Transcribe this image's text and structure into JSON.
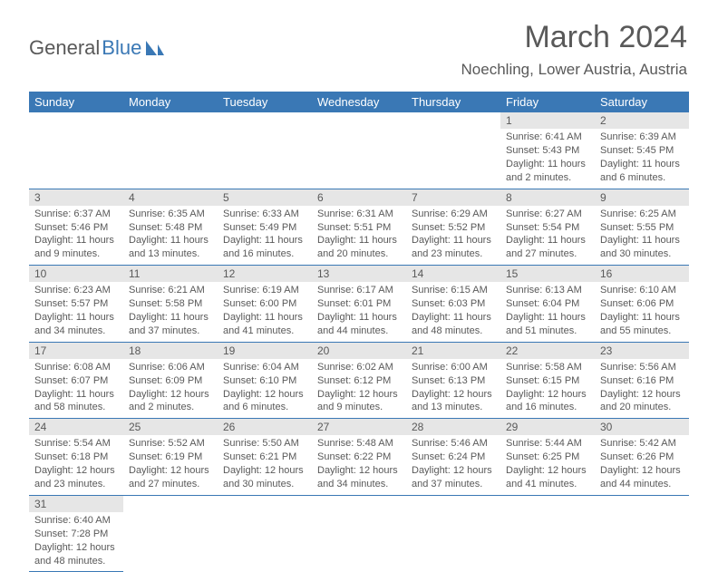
{
  "logo": {
    "part1": "General",
    "part2": "Blue"
  },
  "title": "March 2024",
  "location": "Noechling, Lower Austria, Austria",
  "colors": {
    "header_bg": "#3a78b5",
    "header_text": "#ffffff",
    "daynum_bg": "#e6e6e6",
    "body_text": "#595959",
    "rule": "#3a78b5"
  },
  "weekdays": [
    "Sunday",
    "Monday",
    "Tuesday",
    "Wednesday",
    "Thursday",
    "Friday",
    "Saturday"
  ],
  "weeks": [
    [
      null,
      null,
      null,
      null,
      null,
      {
        "n": "1",
        "sunrise": "6:41 AM",
        "sunset": "5:43 PM",
        "day": "11 hours and 2 minutes."
      },
      {
        "n": "2",
        "sunrise": "6:39 AM",
        "sunset": "5:45 PM",
        "day": "11 hours and 6 minutes."
      }
    ],
    [
      {
        "n": "3",
        "sunrise": "6:37 AM",
        "sunset": "5:46 PM",
        "day": "11 hours and 9 minutes."
      },
      {
        "n": "4",
        "sunrise": "6:35 AM",
        "sunset": "5:48 PM",
        "day": "11 hours and 13 minutes."
      },
      {
        "n": "5",
        "sunrise": "6:33 AM",
        "sunset": "5:49 PM",
        "day": "11 hours and 16 minutes."
      },
      {
        "n": "6",
        "sunrise": "6:31 AM",
        "sunset": "5:51 PM",
        "day": "11 hours and 20 minutes."
      },
      {
        "n": "7",
        "sunrise": "6:29 AM",
        "sunset": "5:52 PM",
        "day": "11 hours and 23 minutes."
      },
      {
        "n": "8",
        "sunrise": "6:27 AM",
        "sunset": "5:54 PM",
        "day": "11 hours and 27 minutes."
      },
      {
        "n": "9",
        "sunrise": "6:25 AM",
        "sunset": "5:55 PM",
        "day": "11 hours and 30 minutes."
      }
    ],
    [
      {
        "n": "10",
        "sunrise": "6:23 AM",
        "sunset": "5:57 PM",
        "day": "11 hours and 34 minutes."
      },
      {
        "n": "11",
        "sunrise": "6:21 AM",
        "sunset": "5:58 PM",
        "day": "11 hours and 37 minutes."
      },
      {
        "n": "12",
        "sunrise": "6:19 AM",
        "sunset": "6:00 PM",
        "day": "11 hours and 41 minutes."
      },
      {
        "n": "13",
        "sunrise": "6:17 AM",
        "sunset": "6:01 PM",
        "day": "11 hours and 44 minutes."
      },
      {
        "n": "14",
        "sunrise": "6:15 AM",
        "sunset": "6:03 PM",
        "day": "11 hours and 48 minutes."
      },
      {
        "n": "15",
        "sunrise": "6:13 AM",
        "sunset": "6:04 PM",
        "day": "11 hours and 51 minutes."
      },
      {
        "n": "16",
        "sunrise": "6:10 AM",
        "sunset": "6:06 PM",
        "day": "11 hours and 55 minutes."
      }
    ],
    [
      {
        "n": "17",
        "sunrise": "6:08 AM",
        "sunset": "6:07 PM",
        "day": "11 hours and 58 minutes."
      },
      {
        "n": "18",
        "sunrise": "6:06 AM",
        "sunset": "6:09 PM",
        "day": "12 hours and 2 minutes."
      },
      {
        "n": "19",
        "sunrise": "6:04 AM",
        "sunset": "6:10 PM",
        "day": "12 hours and 6 minutes."
      },
      {
        "n": "20",
        "sunrise": "6:02 AM",
        "sunset": "6:12 PM",
        "day": "12 hours and 9 minutes."
      },
      {
        "n": "21",
        "sunrise": "6:00 AM",
        "sunset": "6:13 PM",
        "day": "12 hours and 13 minutes."
      },
      {
        "n": "22",
        "sunrise": "5:58 AM",
        "sunset": "6:15 PM",
        "day": "12 hours and 16 minutes."
      },
      {
        "n": "23",
        "sunrise": "5:56 AM",
        "sunset": "6:16 PM",
        "day": "12 hours and 20 minutes."
      }
    ],
    [
      {
        "n": "24",
        "sunrise": "5:54 AM",
        "sunset": "6:18 PM",
        "day": "12 hours and 23 minutes."
      },
      {
        "n": "25",
        "sunrise": "5:52 AM",
        "sunset": "6:19 PM",
        "day": "12 hours and 27 minutes."
      },
      {
        "n": "26",
        "sunrise": "5:50 AM",
        "sunset": "6:21 PM",
        "day": "12 hours and 30 minutes."
      },
      {
        "n": "27",
        "sunrise": "5:48 AM",
        "sunset": "6:22 PM",
        "day": "12 hours and 34 minutes."
      },
      {
        "n": "28",
        "sunrise": "5:46 AM",
        "sunset": "6:24 PM",
        "day": "12 hours and 37 minutes."
      },
      {
        "n": "29",
        "sunrise": "5:44 AM",
        "sunset": "6:25 PM",
        "day": "12 hours and 41 minutes."
      },
      {
        "n": "30",
        "sunrise": "5:42 AM",
        "sunset": "6:26 PM",
        "day": "12 hours and 44 minutes."
      }
    ],
    [
      {
        "n": "31",
        "sunrise": "6:40 AM",
        "sunset": "7:28 PM",
        "day": "12 hours and 48 minutes."
      },
      null,
      null,
      null,
      null,
      null,
      null
    ]
  ],
  "labels": {
    "sunrise": "Sunrise: ",
    "sunset": "Sunset: ",
    "daylight": "Daylight: "
  }
}
